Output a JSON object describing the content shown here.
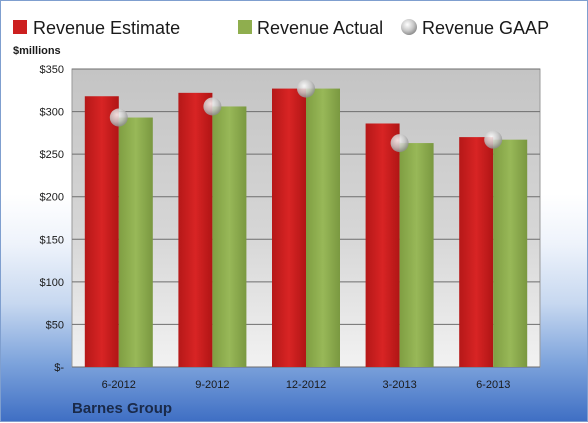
{
  "chart_data": {
    "type": "bar",
    "title": "",
    "ylabel": "$millions",
    "xlabel": "",
    "company": "Barnes Group",
    "categories": [
      "6-2012",
      "9-2012",
      "12-2012",
      "3-2013",
      "6-2013"
    ],
    "series": [
      {
        "name": "Revenue Estimate",
        "kind": "bar",
        "color": "#cc1f1f",
        "values": [
          318,
          322,
          327,
          286,
          270
        ]
      },
      {
        "name": "Revenue Actual",
        "kind": "bar",
        "color": "#8fae4e",
        "values": [
          293,
          306,
          327,
          263,
          267
        ]
      },
      {
        "name": "Revenue GAAP",
        "kind": "marker",
        "color": "#c9c9c9",
        "values": [
          293,
          306,
          327,
          263,
          267
        ]
      }
    ],
    "ylim": [
      0,
      350
    ],
    "yticks": [
      0,
      50,
      100,
      150,
      200,
      250,
      300,
      350
    ],
    "ytick_labels": [
      "$-",
      "$50",
      "$100",
      "$150",
      "$200",
      "$250",
      "$300",
      "$350"
    ],
    "grid": true,
    "legend_position": "top"
  }
}
